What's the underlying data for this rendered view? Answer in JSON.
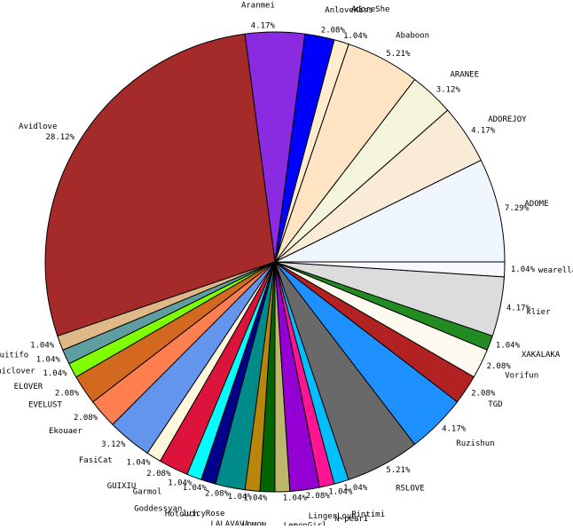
{
  "chart_data": {
    "type": "pie",
    "title": "",
    "slices": [
      {
        "label": "ADOME",
        "value": 7.29,
        "pct_label": "7.29%",
        "color": "#EFF6FE"
      },
      {
        "label": "ADOREJOY",
        "value": 4.17,
        "pct_label": "4.17%",
        "color": "#FAEBD7"
      },
      {
        "label": "ARANEE",
        "value": 3.12,
        "pct_label": "3.12%",
        "color": "#F5F5DC"
      },
      {
        "label": "Ababoon",
        "value": 5.21,
        "pct_label": "5.21%",
        "color": "#FFE4C4"
      },
      {
        "label": "AdoreShe",
        "value": 1.04,
        "pct_label": "1.04%",
        "color": "#FFEBCD"
      },
      {
        "label": "AnloveKiss",
        "value": 2.08,
        "pct_label": "2.08%",
        "color": "#0000FF"
      },
      {
        "label": "Aranmei",
        "value": 4.17,
        "pct_label": "4.17%",
        "color": "#8A2BE2"
      },
      {
        "label": "Avidlove",
        "value": 28.12,
        "pct_label": "28.12%",
        "color": "#A52A2A"
      },
      {
        "label": "Buitifo",
        "value": 1.04,
        "pct_label": "1.04%",
        "color": "#DEB887"
      },
      {
        "label": "Chiclover",
        "value": 1.04,
        "pct_label": "1.04%",
        "color": "#5F9EA0"
      },
      {
        "label": "ELOVER",
        "value": 1.04,
        "pct_label": "1.04%",
        "color": "#7FFF00"
      },
      {
        "label": "EVELUST",
        "value": 2.08,
        "pct_label": "2.08%",
        "color": "#D2691E"
      },
      {
        "label": "Ekouaer",
        "value": 2.08,
        "pct_label": "2.08%",
        "color": "#FF7F50"
      },
      {
        "label": "FasiCat",
        "value": 3.12,
        "pct_label": "3.12%",
        "color": "#6495ED"
      },
      {
        "label": "GUIXIU",
        "value": 1.04,
        "pct_label": "1.04%",
        "color": "#FFF8DC"
      },
      {
        "label": "Garmol",
        "value": 2.08,
        "pct_label": "2.08%",
        "color": "#DC143C"
      },
      {
        "label": "Goddessyan",
        "value": 1.04,
        "pct_label": "1.04%",
        "color": "#00FFFF"
      },
      {
        "label": "Hotouch",
        "value": 1.04,
        "pct_label": "1.04%",
        "color": "#00008B"
      },
      {
        "label": "JuicyRose",
        "value": 2.08,
        "pct_label": "2.08%",
        "color": "#008B8B"
      },
      {
        "label": "LALAVAVA",
        "value": 1.04,
        "pct_label": "1.04%",
        "color": "#B8860B"
      },
      {
        "label": "LOMON",
        "value": 1.04,
        "pct_label": "1.04%",
        "color": "#006400"
      },
      {
        "label": "LemonGirl",
        "value": 1.04,
        "pct_label": "1.04%",
        "color": "#BDB76B"
      },
      {
        "label": "LingerLove",
        "value": 2.08,
        "pct_label": "2.08%",
        "color": "#9400D3"
      },
      {
        "label": "N-pearI",
        "value": 1.04,
        "pct_label": "1.04%",
        "color": "#FF1493"
      },
      {
        "label": "Pintimi",
        "value": 1.04,
        "pct_label": "1.04%",
        "color": "#00BFFF"
      },
      {
        "label": "RSLOVE",
        "value": 5.21,
        "pct_label": "5.21%",
        "color": "#696969"
      },
      {
        "label": "Ruzishun",
        "value": 4.17,
        "pct_label": "4.17%",
        "color": "#1E90FF"
      },
      {
        "label": "TGD",
        "value": 2.08,
        "pct_label": "2.08%",
        "color": "#B22222"
      },
      {
        "label": "Vorifun",
        "value": 2.08,
        "pct_label": "2.08%",
        "color": "#FFFAF0"
      },
      {
        "label": "XAKALAKA",
        "value": 1.04,
        "pct_label": "1.04%",
        "color": "#228B22"
      },
      {
        "label": "klier",
        "value": 4.17,
        "pct_label": "4.17%",
        "color": "#DCDCDC"
      },
      {
        "label": "wearella",
        "value": 1.04,
        "pct_label": "1.04%",
        "color": "#F8F8FF"
      }
    ]
  }
}
